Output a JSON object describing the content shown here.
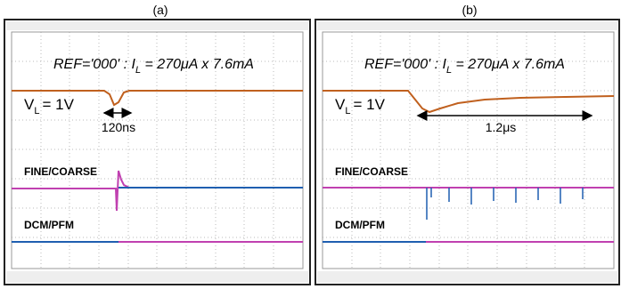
{
  "panels": [
    {
      "label": "(a)",
      "annotation": {
        "prefix": "REF='000' : I",
        "subscript": "L",
        "suffix": " = 270μA x  7.6mA"
      },
      "voltage": {
        "main": "V",
        "subscript": "L",
        "suffix": "= 1V"
      },
      "duration": "120ns",
      "signals": [
        "FINE/COARSE",
        "DCM/PFM"
      ]
    },
    {
      "label": "(b)",
      "annotation": {
        "prefix": "REF='000' : I",
        "subscript": "L",
        "suffix": " = 270μA x  7.6mA"
      },
      "voltage": {
        "main": "V",
        "subscript": "L",
        "suffix": "= 1V"
      },
      "duration": "1.2μs",
      "signals": [
        "FINE/COARSE",
        "DCM/PFM"
      ]
    }
  ]
}
